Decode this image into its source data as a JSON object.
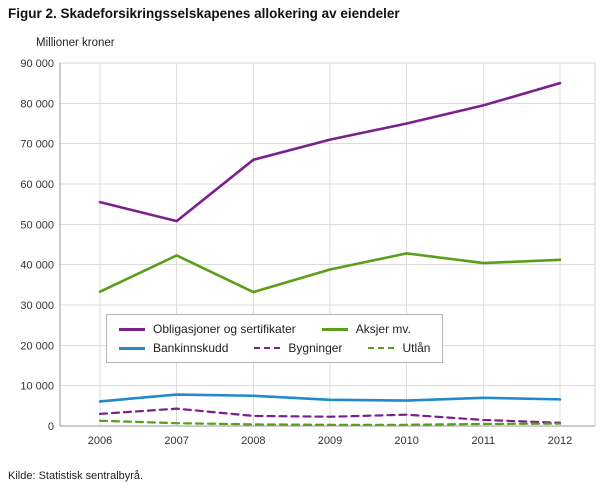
{
  "title": "Figur 2. Skadeforsikringsselskapenes allokering av eiendeler",
  "y_axis_label": "Millioner kroner",
  "source": "Kilde: Statistisk sentralbyrå.",
  "colors": {
    "purple": "#7b218c",
    "green": "#5a9e1b",
    "blue": "#2289cb",
    "grid": "#dcdcdc",
    "axis": "#9a9a9a",
    "text": "#333333"
  },
  "chart_data": {
    "type": "line",
    "title": "Figur 2. Skadeforsikringsselskapenes allokering av eiendeler",
    "xlabel": "",
    "ylabel": "Millioner kroner",
    "x": [
      2006,
      2007,
      2008,
      2009,
      2010,
      2011,
      2012
    ],
    "ylim": [
      0,
      90000
    ],
    "ytick_step": 10000,
    "ytick_labels": [
      "0",
      "10 000",
      "20 000",
      "30 000",
      "40 000",
      "50 000",
      "60 000",
      "70 000",
      "80 000",
      "90 000"
    ],
    "grid": true,
    "legend_position": "inside-center-left",
    "series": [
      {
        "name": "Obligasjoner og sertifikater",
        "color": "purple",
        "dash": false,
        "values": [
          55500,
          50800,
          66000,
          71000,
          75000,
          79500,
          85000
        ]
      },
      {
        "name": "Aksjer mv.",
        "color": "green",
        "dash": false,
        "values": [
          33300,
          42300,
          33200,
          38800,
          42800,
          40400,
          41200
        ]
      },
      {
        "name": "Bankinnskudd",
        "color": "blue",
        "dash": false,
        "values": [
          6100,
          7800,
          7500,
          6500,
          6300,
          7000,
          6600
        ]
      },
      {
        "name": "Bygninger",
        "color": "purple",
        "dash": true,
        "values": [
          3000,
          4300,
          2500,
          2300,
          2800,
          1500,
          800
        ]
      },
      {
        "name": "Utlån",
        "color": "green",
        "dash": true,
        "values": [
          1300,
          700,
          400,
          300,
          300,
          500,
          600
        ]
      }
    ],
    "legend_rows": [
      [
        0,
        1
      ],
      [
        2,
        3,
        4
      ]
    ]
  }
}
